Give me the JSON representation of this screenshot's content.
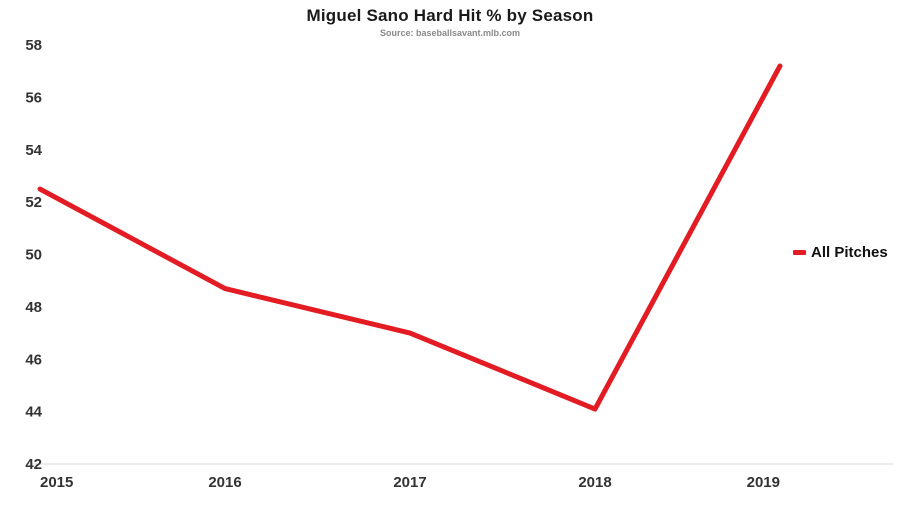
{
  "header": {
    "title": "Miguel Sano Hard Hit % by Season",
    "subtitle": "Source: baseballsavant.mlb.com"
  },
  "legend": {
    "label": "All Pitches"
  },
  "colors": {
    "line": "#e31b23",
    "axis_line": "#d9d9d9",
    "tick_text": "#333333"
  },
  "chart_data": {
    "type": "line",
    "title": "Miguel Sano Hard Hit % by Season",
    "subtitle": "Source: baseballsavant.mlb.com",
    "x": [
      "2015",
      "2016",
      "2017",
      "2018",
      "2019"
    ],
    "series": [
      {
        "name": "All Pitches",
        "values": [
          52.5,
          48.7,
          47.0,
          44.1,
          57.2
        ],
        "color": "#e31b23"
      }
    ],
    "xlabel": "",
    "ylabel": "",
    "ylim": [
      42,
      58
    ],
    "yticks": [
      42,
      44,
      46,
      48,
      50,
      52,
      54,
      56,
      58
    ],
    "grid": false,
    "legend_position": "right"
  }
}
